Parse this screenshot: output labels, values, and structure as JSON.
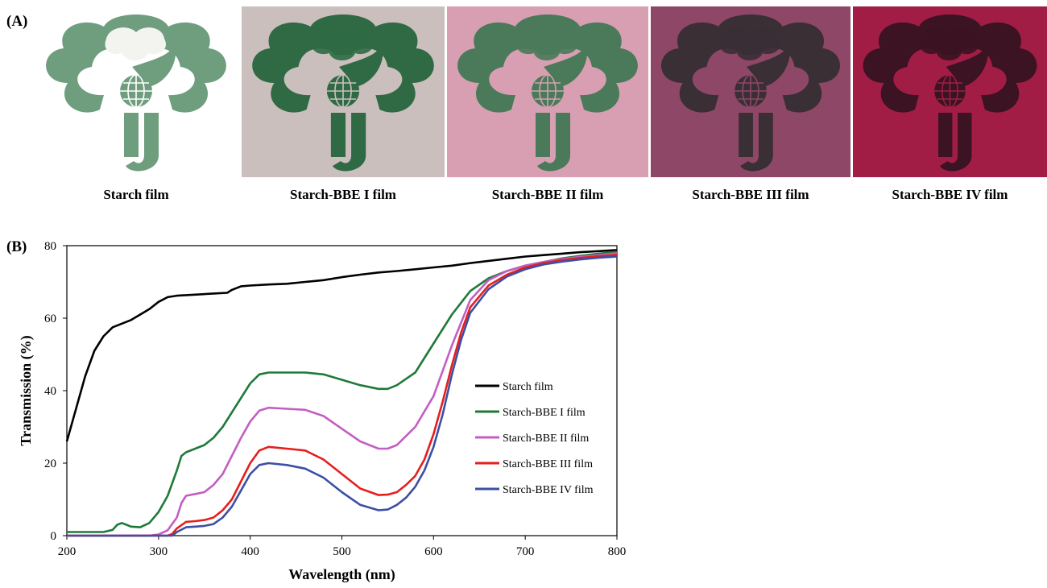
{
  "panel_a": {
    "label": "(A)",
    "films": [
      {
        "caption": "Starch film",
        "bg": "#ffffff",
        "logo": "#6f9e7f"
      },
      {
        "caption": "Starch-BBE I film",
        "bg": "#cbbfbe",
        "logo": "#2f6a44"
      },
      {
        "caption": "Starch-BBE II film",
        "bg": "#d79fb1",
        "logo": "#4a7a59"
      },
      {
        "caption": "Starch-BBE III film",
        "bg": "#8f4768",
        "logo": "#3a2f35"
      },
      {
        "caption": "Starch-BBE IV film",
        "bg": "#a11d45",
        "logo": "#3b1322"
      }
    ]
  },
  "panel_b": {
    "label": "(B)"
  },
  "chart_data": {
    "type": "line",
    "xlabel": "Wavelength (nm)",
    "ylabel": "Transmission (%)",
    "xlim": [
      200,
      800
    ],
    "ylim": [
      0,
      80
    ],
    "xticks": [
      200,
      300,
      400,
      500,
      600,
      700,
      800
    ],
    "yticks": [
      0,
      20,
      40,
      60,
      80
    ],
    "grid": false,
    "legend_position": "right",
    "series": [
      {
        "name": "Starch film",
        "color": "#000000",
        "x": [
          200,
          210,
          220,
          230,
          240,
          250,
          260,
          270,
          280,
          290,
          300,
          310,
          320,
          340,
          360,
          375,
          380,
          390,
          400,
          420,
          440,
          460,
          480,
          500,
          520,
          540,
          560,
          580,
          600,
          620,
          640,
          660,
          680,
          700,
          720,
          740,
          760,
          780,
          800
        ],
        "y": [
          26,
          35,
          44,
          51,
          55,
          57.5,
          58.5,
          59.5,
          61,
          62.5,
          64.5,
          65.8,
          66.2,
          66.5,
          66.8,
          67,
          67.8,
          68.8,
          69,
          69.3,
          69.5,
          70,
          70.5,
          71.3,
          72,
          72.6,
          73,
          73.5,
          74,
          74.5,
          75.2,
          75.8,
          76.4,
          77,
          77.4,
          77.8,
          78.2,
          78.5,
          78.8
        ]
      },
      {
        "name": "Starch-BBE I film",
        "color": "#1f7a3a",
        "x": [
          200,
          240,
          250,
          255,
          260,
          265,
          270,
          280,
          290,
          300,
          310,
          320,
          325,
          330,
          340,
          350,
          360,
          370,
          380,
          390,
          400,
          410,
          420,
          440,
          460,
          480,
          500,
          520,
          540,
          550,
          560,
          580,
          600,
          620,
          640,
          660,
          680,
          700,
          720,
          740,
          760,
          780,
          800
        ],
        "y": [
          1,
          1,
          1.6,
          3,
          3.5,
          3,
          2.5,
          2.3,
          3.5,
          6.5,
          11,
          18,
          22,
          23,
          24,
          25,
          27,
          30,
          34,
          38,
          42,
          44.5,
          45,
          45,
          45,
          44.5,
          43,
          41.5,
          40.5,
          40.5,
          41.5,
          45,
          53,
          61,
          67.5,
          71,
          73,
          74.5,
          75.5,
          76.5,
          77.2,
          77.8,
          78.3
        ]
      },
      {
        "name": "Starch-BBE II film",
        "color": "#c35ec3",
        "x": [
          200,
          290,
          300,
          310,
          320,
          325,
          330,
          340,
          350,
          360,
          370,
          380,
          390,
          400,
          410,
          420,
          440,
          460,
          480,
          500,
          520,
          540,
          550,
          560,
          580,
          600,
          620,
          640,
          660,
          680,
          700,
          720,
          740,
          760,
          780,
          800
        ],
        "y": [
          0,
          0,
          0.3,
          1.5,
          5,
          9,
          11,
          11.5,
          12,
          14,
          17,
          22,
          27,
          31.5,
          34.5,
          35.3,
          35,
          34.7,
          33,
          29.5,
          26,
          24,
          24,
          25,
          30,
          38.5,
          52.5,
          65,
          70.5,
          73,
          74.5,
          75.5,
          76.3,
          76.9,
          77.4,
          77.9
        ]
      },
      {
        "name": "Starch-BBE III film",
        "color": "#e61e1e",
        "x": [
          200,
          310,
          315,
          320,
          330,
          340,
          350,
          360,
          370,
          380,
          390,
          400,
          410,
          420,
          440,
          460,
          480,
          500,
          520,
          540,
          550,
          560,
          570,
          580,
          590,
          600,
          610,
          620,
          630,
          640,
          660,
          680,
          700,
          720,
          740,
          760,
          780,
          800
        ],
        "y": [
          0,
          0,
          0.5,
          2,
          3.8,
          4,
          4.3,
          5,
          7,
          10,
          15,
          20,
          23.5,
          24.5,
          24,
          23.5,
          21,
          17,
          13,
          11.2,
          11.3,
          12,
          14,
          16.5,
          21,
          28,
          37,
          47,
          56,
          63,
          69,
          72,
          74,
          75.2,
          76,
          76.6,
          77.1,
          77.5
        ]
      },
      {
        "name": "Starch-BBE IV film",
        "color": "#3c4fa5",
        "x": [
          200,
          315,
          320,
          330,
          340,
          350,
          360,
          370,
          380,
          390,
          400,
          410,
          420,
          440,
          460,
          480,
          500,
          520,
          540,
          550,
          560,
          570,
          580,
          590,
          600,
          610,
          620,
          630,
          640,
          660,
          680,
          700,
          720,
          740,
          760,
          780,
          800
        ],
        "y": [
          0,
          0,
          1,
          2.3,
          2.5,
          2.7,
          3.2,
          5,
          8,
          12.5,
          17,
          19.5,
          20,
          19.5,
          18.5,
          16,
          12,
          8.5,
          7,
          7.2,
          8.5,
          10.5,
          13.5,
          18,
          24.5,
          33.5,
          44.5,
          54,
          61.5,
          68,
          71.5,
          73.5,
          74.8,
          75.6,
          76.2,
          76.7,
          77
        ]
      }
    ]
  }
}
